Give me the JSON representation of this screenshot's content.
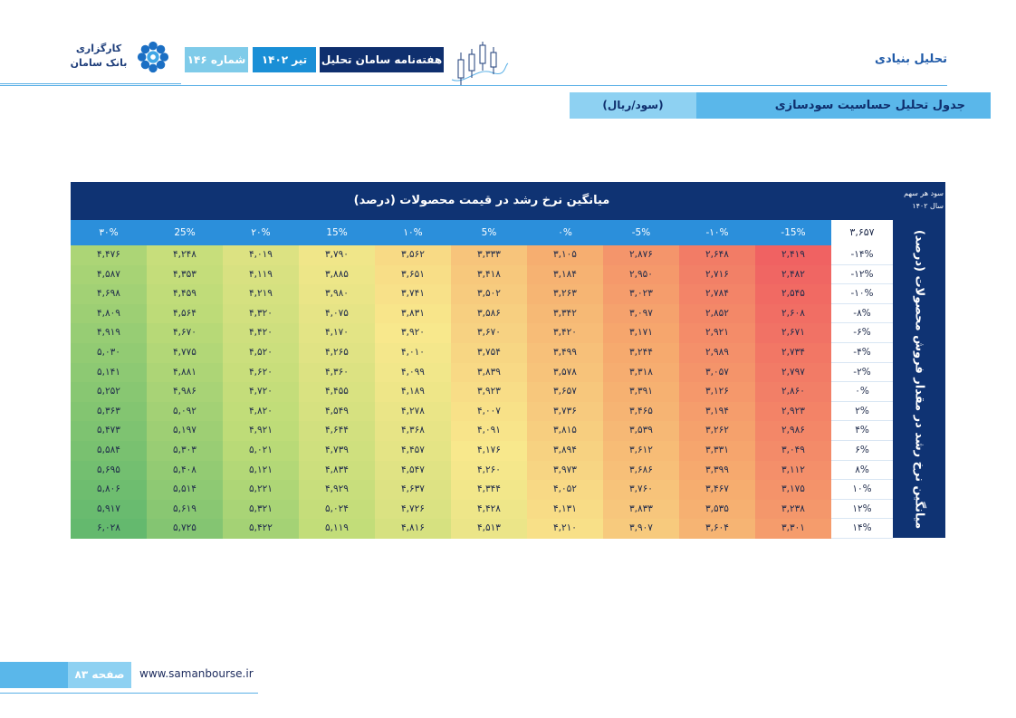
{
  "header": {
    "section": "تحلیل بنیادی",
    "logo_line1": "کارگزاری",
    "logo_line2": "بانک سامان",
    "issue": "شماره ۱۴۶",
    "month": "تیر ۱۴۰۲",
    "weekly": "هفته‌نامه سامان تحلیل"
  },
  "section_title": {
    "title": "جدول تحلیل حساسیت سودسازی",
    "unit": "(سود/ریال)"
  },
  "table": {
    "col_header_title": "میانگین نرخ رشد در قیمت محصولات (درصد)",
    "row_header_title": "میانگین نرخ رشد در مقدار فروش محصولات (درصد)",
    "corner_line1": "سود هر سهم",
    "corner_line2": "سال ۱۴۰۲",
    "eps": "۳,۶۵۷",
    "columns": [
      "-15%",
      "-۱۰%",
      "-5%",
      "۰%",
      "5%",
      "۱۰%",
      "15%",
      "۲۰%",
      "25%",
      "۳۰%"
    ],
    "rows": [
      {
        "label": "-۱۴%",
        "values": [
          "۲,۴۱۹",
          "۲,۶۴۸",
          "۲,۸۷۶",
          "۳,۱۰۵",
          "۳,۳۳۳",
          "۳,۵۶۲",
          "۳,۷۹۰",
          "۴,۰۱۹",
          "۴,۲۴۸",
          "۴,۴۷۶"
        ]
      },
      {
        "label": "-۱۲%",
        "values": [
          "۲,۴۸۲",
          "۲,۷۱۶",
          "۲,۹۵۰",
          "۳,۱۸۴",
          "۳,۴۱۸",
          "۳,۶۵۱",
          "۳,۸۸۵",
          "۴,۱۱۹",
          "۴,۳۵۳",
          "۴,۵۸۷"
        ]
      },
      {
        "label": "-۱۰%",
        "values": [
          "۲,۵۴۵",
          "۲,۷۸۴",
          "۳,۰۲۳",
          "۳,۲۶۳",
          "۳,۵۰۲",
          "۳,۷۴۱",
          "۳,۹۸۰",
          "۴,۲۱۹",
          "۴,۴۵۹",
          "۴,۶۹۸"
        ]
      },
      {
        "label": "-۸%",
        "values": [
          "۲,۶۰۸",
          "۲,۸۵۲",
          "۳,۰۹۷",
          "۳,۳۴۲",
          "۳,۵۸۶",
          "۳,۸۳۱",
          "۴,۰۷۵",
          "۴,۳۲۰",
          "۴,۵۶۴",
          "۴,۸۰۹"
        ]
      },
      {
        "label": "-۶%",
        "values": [
          "۲,۶۷۱",
          "۲,۹۲۱",
          "۳,۱۷۱",
          "۳,۴۲۰",
          "۳,۶۷۰",
          "۳,۹۲۰",
          "۴,۱۷۰",
          "۴,۴۲۰",
          "۴,۶۷۰",
          "۴,۹۱۹"
        ]
      },
      {
        "label": "-۴%",
        "values": [
          "۲,۷۳۴",
          "۲,۹۸۹",
          "۳,۲۴۴",
          "۳,۴۹۹",
          "۳,۷۵۴",
          "۴,۰۱۰",
          "۴,۲۶۵",
          "۴,۵۲۰",
          "۴,۷۷۵",
          "۵,۰۳۰"
        ]
      },
      {
        "label": "-۲%",
        "values": [
          "۲,۷۹۷",
          "۳,۰۵۷",
          "۳,۳۱۸",
          "۳,۵۷۸",
          "۳,۸۳۹",
          "۴,۰۹۹",
          "۴,۳۶۰",
          "۴,۶۲۰",
          "۴,۸۸۱",
          "۵,۱۴۱"
        ]
      },
      {
        "label": "۰%",
        "values": [
          "۲,۸۶۰",
          "۳,۱۲۶",
          "۳,۳۹۱",
          "۳,۶۵۷",
          "۳,۹۲۳",
          "۴,۱۸۹",
          "۴,۴۵۵",
          "۴,۷۲۰",
          "۴,۹۸۶",
          "۵,۲۵۲"
        ]
      },
      {
        "label": "۲%",
        "values": [
          "۲,۹۲۳",
          "۳,۱۹۴",
          "۳,۴۶۵",
          "۳,۷۳۶",
          "۴,۰۰۷",
          "۴,۲۷۸",
          "۴,۵۴۹",
          "۴,۸۲۰",
          "۵,۰۹۲",
          "۵,۳۶۳"
        ]
      },
      {
        "label": "۴%",
        "values": [
          "۲,۹۸۶",
          "۳,۲۶۲",
          "۳,۵۳۹",
          "۳,۸۱۵",
          "۴,۰۹۱",
          "۴,۳۶۸",
          "۴,۶۴۴",
          "۴,۹۲۱",
          "۵,۱۹۷",
          "۵,۴۷۳"
        ]
      },
      {
        "label": "۶%",
        "values": [
          "۳,۰۴۹",
          "۳,۳۳۱",
          "۳,۶۱۲",
          "۳,۸۹۴",
          "۴,۱۷۶",
          "۴,۴۵۷",
          "۴,۷۳۹",
          "۵,۰۲۱",
          "۵,۳۰۳",
          "۵,۵۸۴"
        ]
      },
      {
        "label": "۸%",
        "values": [
          "۳,۱۱۲",
          "۳,۳۹۹",
          "۳,۶۸۶",
          "۳,۹۷۳",
          "۴,۲۶۰",
          "۴,۵۴۷",
          "۴,۸۳۴",
          "۵,۱۲۱",
          "۵,۴۰۸",
          "۵,۶۹۵"
        ]
      },
      {
        "label": "۱۰%",
        "values": [
          "۳,۱۷۵",
          "۳,۴۶۷",
          "۳,۷۶۰",
          "۴,۰۵۲",
          "۴,۳۴۴",
          "۴,۶۳۷",
          "۴,۹۲۹",
          "۵,۲۲۱",
          "۵,۵۱۴",
          "۵,۸۰۶"
        ]
      },
      {
        "label": "۱۲%",
        "values": [
          "۳,۲۳۸",
          "۳,۵۳۵",
          "۳,۸۳۳",
          "۴,۱۳۱",
          "۴,۴۲۸",
          "۴,۷۲۶",
          "۵,۰۲۴",
          "۵,۳۲۱",
          "۵,۶۱۹",
          "۵,۹۱۷"
        ]
      },
      {
        "label": "۱۴%",
        "values": [
          "۳,۳۰۱",
          "۳,۶۰۴",
          "۳,۹۰۷",
          "۴,۲۱۰",
          "۴,۵۱۳",
          "۴,۸۱۶",
          "۵,۱۱۹",
          "۵,۴۲۲",
          "۵,۷۲۵",
          "۶,۰۲۸"
        ]
      }
    ]
  },
  "footer": {
    "page": "صفحه ۸۳",
    "url": "www.samanbourse.ir"
  }
}
